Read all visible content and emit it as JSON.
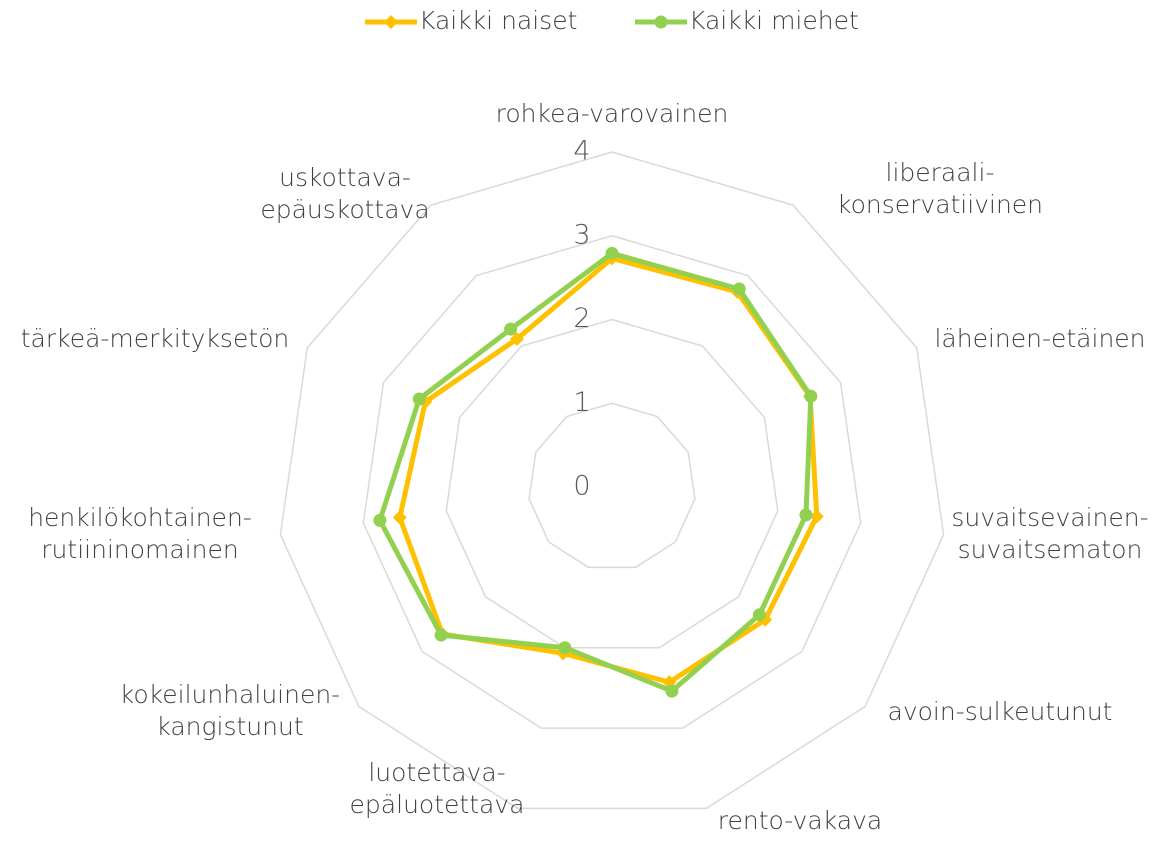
{
  "chart_data": {
    "type": "radar",
    "categories": [
      "rohkea-varovainen",
      "liberaali-\nkonservatiivinen",
      "läheinen-etäinen",
      "suvaitsevainen-\nsuvaitsematon",
      "avoin-sulkeutunut",
      "rento-vakava",
      "luotettava-\nepäluotettava",
      "kokeilunhaluinen-\nkangistunut",
      "henkilökohtainen-\nrutiininomainen",
      "tärkeä-merkityksetön",
      "uskottava-\nepäuskottava"
    ],
    "series": [
      {
        "name": "Kaikki naiset",
        "color": "#ffc000",
        "marker": "diamond",
        "values": [
          2.73,
          2.77,
          2.6,
          2.47,
          2.42,
          2.43,
          2.07,
          2.68,
          2.56,
          2.45,
          2.1
        ]
      },
      {
        "name": "Kaikki miehet",
        "color": "#92d050",
        "marker": "circle",
        "values": [
          2.79,
          2.81,
          2.61,
          2.34,
          2.33,
          2.54,
          2.0,
          2.7,
          2.8,
          2.53,
          2.24
        ]
      }
    ],
    "ylim": [
      0,
      4
    ],
    "yticks": [
      0,
      1,
      2,
      3,
      4
    ],
    "grid": true,
    "legend": "top"
  }
}
